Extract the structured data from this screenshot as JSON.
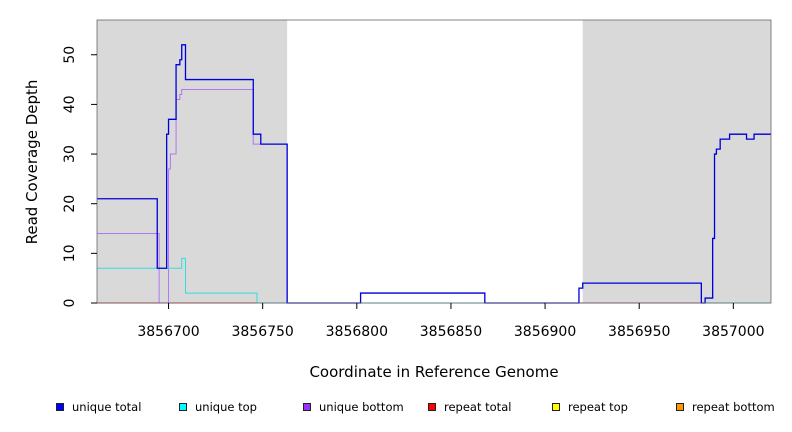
{
  "chart_data": {
    "type": "line",
    "title": "",
    "xlabel": "Coordinate in Reference Genome",
    "ylabel": "Read Coverage Depth",
    "xlim": [
      3856662,
      3857020
    ],
    "ylim": [
      0,
      57
    ],
    "xticks": [
      3856700,
      3856750,
      3856800,
      3856850,
      3856900,
      3856950,
      3857000
    ],
    "yticks": [
      0,
      10,
      20,
      30,
      40,
      50
    ],
    "shaded_regions": [
      [
        3856662,
        3856763
      ],
      [
        3856920,
        3857020
      ]
    ],
    "shade_color": "#d9d9d9",
    "series": [
      {
        "name": "unique total",
        "color": "#0000dd",
        "steps": [
          [
            3856662,
            21
          ],
          [
            3856694,
            7
          ],
          [
            3856699,
            34
          ],
          [
            3856700,
            37
          ],
          [
            3856704,
            48
          ],
          [
            3856706,
            49
          ],
          [
            3856707,
            52
          ],
          [
            3856709,
            45
          ],
          [
            3856745,
            34
          ],
          [
            3856749,
            32
          ],
          [
            3856763,
            0
          ],
          [
            3856802,
            2
          ],
          [
            3856868,
            0
          ],
          [
            3856918,
            3
          ],
          [
            3856920,
            4
          ],
          [
            3856983,
            0
          ],
          [
            3856985,
            1
          ],
          [
            3856989,
            13
          ],
          [
            3856990,
            30
          ],
          [
            3856991,
            31
          ],
          [
            3856993,
            33
          ],
          [
            3856998,
            34
          ],
          [
            3857007,
            33
          ],
          [
            3857011,
            34
          ],
          [
            3857020,
            34
          ]
        ]
      },
      {
        "name": "unique top",
        "color": "#33dddd",
        "steps": [
          [
            3856662,
            7
          ],
          [
            3856707,
            9
          ],
          [
            3856709,
            2
          ],
          [
            3856747,
            0
          ],
          [
            3856918,
            3
          ],
          [
            3856920,
            4
          ],
          [
            3856983,
            0
          ],
          [
            3857020,
            0
          ]
        ]
      },
      {
        "name": "unique bottom",
        "color": "#9933ff",
        "steps": [
          [
            3856662,
            14
          ],
          [
            3856695,
            0
          ],
          [
            3856700,
            27
          ],
          [
            3856701,
            30
          ],
          [
            3856704,
            41
          ],
          [
            3856706,
            42
          ],
          [
            3856707,
            43
          ],
          [
            3856745,
            32
          ],
          [
            3856749,
            32
          ],
          [
            3856763,
            0
          ],
          [
            3856802,
            2
          ],
          [
            3856868,
            0
          ],
          [
            3856985,
            1
          ],
          [
            3856989,
            13
          ],
          [
            3856990,
            30
          ],
          [
            3856991,
            31
          ],
          [
            3856993,
            33
          ],
          [
            3856998,
            34
          ],
          [
            3857007,
            33
          ],
          [
            3857011,
            34
          ],
          [
            3857020,
            34
          ]
        ]
      },
      {
        "name": "repeat total",
        "color": "#ff0000",
        "steps": [
          [
            3856662,
            0
          ],
          [
            3857020,
            0
          ]
        ]
      },
      {
        "name": "repeat top",
        "color": "#ffff00",
        "steps": [
          [
            3856662,
            0
          ],
          [
            3857020,
            0
          ]
        ]
      },
      {
        "name": "repeat bottom",
        "color": "#ff9900",
        "steps": [
          [
            3856662,
            0
          ],
          [
            3857020,
            0
          ]
        ]
      }
    ],
    "legend": {
      "placement": "bottom",
      "entries": [
        {
          "label": "unique total",
          "color": "#0000ff"
        },
        {
          "label": "unique top",
          "color": "#00ffff"
        },
        {
          "label": "unique bottom",
          "color": "#9933ff"
        },
        {
          "label": "repeat total",
          "color": "#ff0000"
        },
        {
          "label": "repeat top",
          "color": "#ffff00"
        },
        {
          "label": "repeat bottom",
          "color": "#ff9900"
        }
      ]
    }
  }
}
